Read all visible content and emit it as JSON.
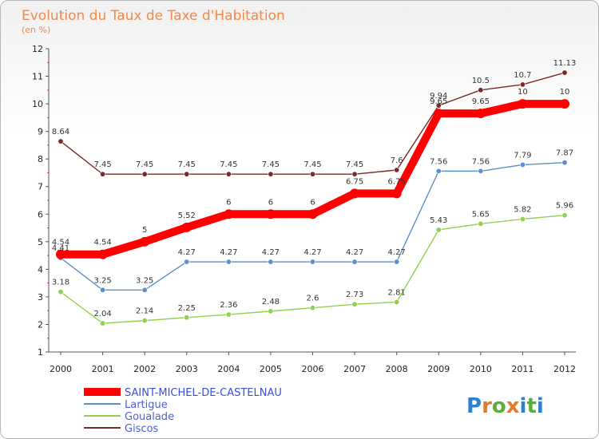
{
  "chart_data": {
    "type": "line",
    "title": "Evolution du Taux de Taxe d'Habitation",
    "subtitle": "(en %)",
    "xlabel": "",
    "ylabel": "",
    "ylim": [
      1,
      12
    ],
    "y_ticks": [
      "1",
      "2",
      "3",
      "4",
      "5",
      "6",
      "7",
      "8",
      "9",
      "10",
      "11",
      "12"
    ],
    "categories": [
      "2000",
      "2001",
      "2002",
      "2003",
      "2004",
      "2005",
      "2006",
      "2007",
      "2008",
      "2009",
      "2010",
      "2011",
      "2012"
    ],
    "grid": false,
    "legend_position": "bottom-left",
    "series": [
      {
        "name": "SAINT-MICHEL-DE-CASTELNAU",
        "color": "#ff0000",
        "values": [
          4.54,
          4.54,
          5,
          5.52,
          6,
          6,
          6,
          6.75,
          6.75,
          9.65,
          9.65,
          10,
          10
        ],
        "labels": [
          "4.54",
          "4.54",
          "5",
          "5.52",
          "6",
          "6",
          "6",
          "6.75",
          "6.75",
          "9.65",
          "9.65",
          "10",
          "10"
        ]
      },
      {
        "name": "Lartigue",
        "color": "#5b8fc9",
        "values": [
          4.41,
          3.25,
          3.25,
          4.27,
          4.27,
          4.27,
          4.27,
          4.27,
          4.27,
          7.56,
          7.56,
          7.79,
          7.87
        ],
        "labels": [
          "4.41",
          "3.25",
          "3.25",
          "4.27",
          "4.27",
          "4.27",
          "4.27",
          "4.27",
          "4.27",
          "7.56",
          "7.56",
          "7.79",
          "7.87"
        ]
      },
      {
        "name": "Goualade",
        "color": "#8fd14f",
        "values": [
          3.18,
          2.04,
          2.14,
          2.25,
          2.36,
          2.48,
          2.6,
          2.73,
          2.81,
          5.43,
          5.65,
          5.82,
          5.96
        ],
        "labels": [
          "3.18",
          "2.04",
          "2.14",
          "2.25",
          "2.36",
          "2.48",
          "2.6",
          "2.73",
          "2.81",
          "5.43",
          "5.65",
          "5.82",
          "5.96"
        ]
      },
      {
        "name": "Giscos",
        "color": "#7a2a2a",
        "values": [
          8.64,
          7.45,
          7.45,
          7.45,
          7.45,
          7.45,
          7.45,
          7.45,
          7.6,
          9.94,
          10.5,
          10.7,
          11.13
        ],
        "labels": [
          "8.64",
          "7.45",
          "7.45",
          "7.45",
          "7.45",
          "7.45",
          "7.45",
          "7.45",
          "7.6",
          "9.94",
          "10.5",
          "10.7",
          "11.13"
        ]
      }
    ]
  },
  "brand": {
    "text": "Proxiti",
    "letter_colors": [
      "#2f7fd4",
      "#e07b2c",
      "#5cae3b",
      "#e07b2c",
      "#2f7fd4",
      "#5cae3b",
      "#2f7fd4"
    ]
  }
}
